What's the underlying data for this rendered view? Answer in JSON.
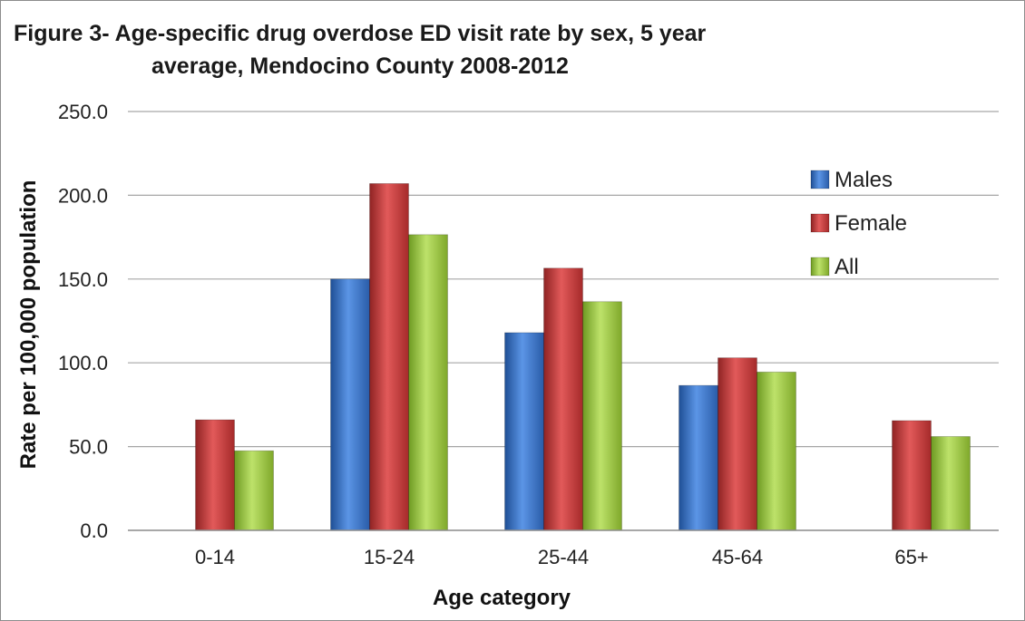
{
  "chart_data": {
    "type": "bar",
    "title_line1": "Figure 3- Age-specific drug overdose ED visit rate by sex, 5 year",
    "title_line2": "average, Mendocino County 2008-2012",
    "xlabel": "Age category",
    "ylabel": "Rate per 100,000 population",
    "categories": [
      "0-14",
      "15-24",
      "25-44",
      "45-64",
      "65+"
    ],
    "series": [
      {
        "name": "Males",
        "color": "#3a73c6",
        "values": [
          null,
          150.0,
          118.0,
          86.5,
          null
        ]
      },
      {
        "name": "Female",
        "color": "#c63a3a",
        "values": [
          66.0,
          207.0,
          156.5,
          103.0,
          65.5
        ]
      },
      {
        "name": "All",
        "color": "#98c23c",
        "values": [
          47.5,
          176.5,
          136.5,
          94.5,
          56.0
        ]
      }
    ],
    "ylim": [
      0,
      250
    ],
    "yticks": [
      "0.0",
      "50.0",
      "100.0",
      "150.0",
      "200.0",
      "250.0"
    ],
    "grid": true,
    "legend_position": "right"
  }
}
